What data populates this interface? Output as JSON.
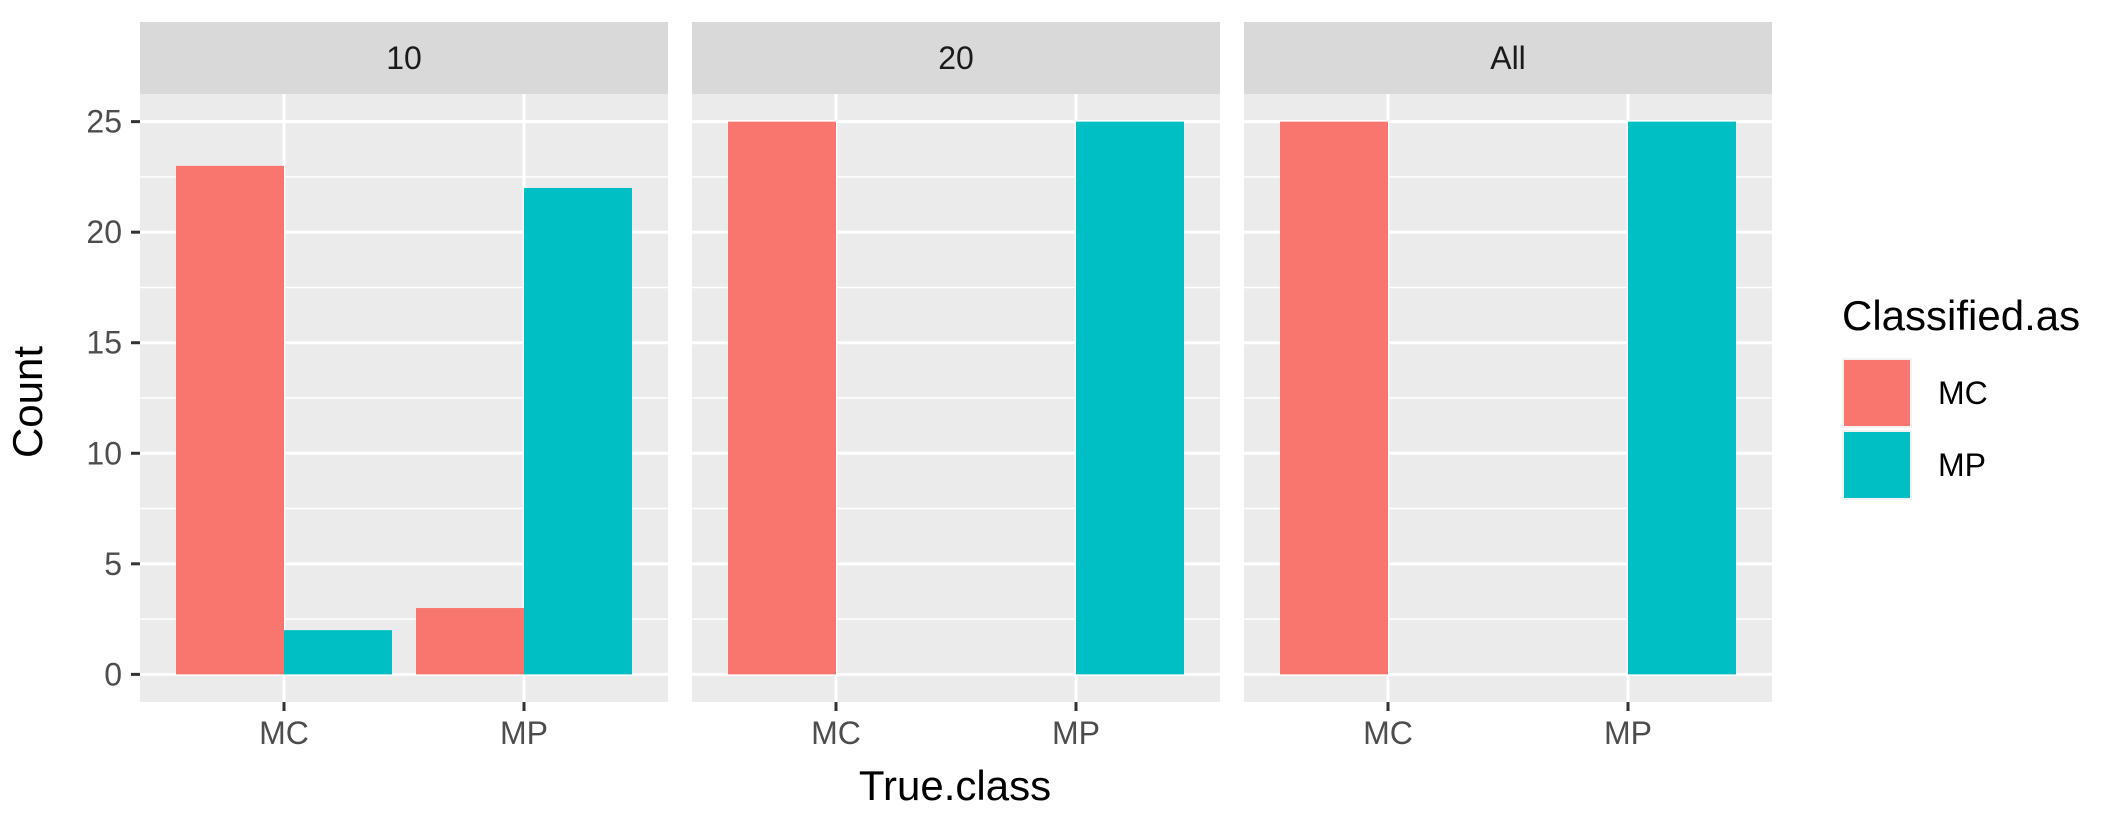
{
  "chart_data": {
    "type": "bar",
    "layout": "faceted",
    "facets": [
      {
        "label": "10",
        "categories": [
          "MC",
          "MP"
        ],
        "series": [
          {
            "name": "MC",
            "values": [
              23,
              3
            ]
          },
          {
            "name": "MP",
            "values": [
              2,
              22
            ]
          }
        ]
      },
      {
        "label": "20",
        "categories": [
          "MC",
          "MP"
        ],
        "series": [
          {
            "name": "MC",
            "values": [
              25,
              0
            ]
          },
          {
            "name": "MP",
            "values": [
              0,
              25
            ]
          }
        ]
      },
      {
        "label": "All",
        "categories": [
          "MC",
          "MP"
        ],
        "series": [
          {
            "name": "MC",
            "values": [
              25,
              0
            ]
          },
          {
            "name": "MP",
            "values": [
              0,
              25
            ]
          }
        ]
      }
    ],
    "xlabel": "True.class",
    "ylabel": "Count",
    "ylim": [
      -1.25,
      26.25
    ],
    "yticks": [
      0,
      5,
      10,
      15,
      20,
      25
    ],
    "grid": true,
    "legend": {
      "title": "Classified.as",
      "position": "right",
      "entries": [
        {
          "label": "MC",
          "color": "#F8766D"
        },
        {
          "label": "MP",
          "color": "#00BFC4"
        }
      ]
    },
    "colors": {
      "panel_background": "#EBEBEB",
      "strip_background": "#D9D9D9",
      "grid": "#FFFFFF",
      "tick": "#333333"
    }
  }
}
